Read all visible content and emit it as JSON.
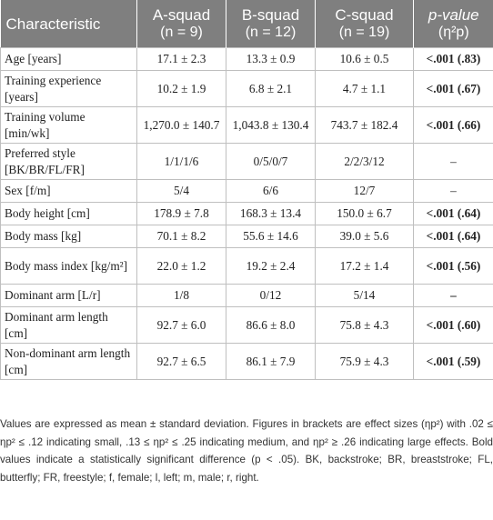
{
  "header": {
    "characteristic": "Characteristic",
    "a_squad": "A-squad",
    "a_n": "(n = 9)",
    "b_squad": "B-squad",
    "b_n": "(n = 12)",
    "c_squad": "C-squad",
    "c_n": "(n = 19)",
    "p_value": "p-value",
    "p_effect": "(η²p)"
  },
  "rows": [
    {
      "label": "Age [years]",
      "a": "17.1 ± 2.3",
      "b": "13.3 ± 0.9",
      "c": "10.6 ± 0.5",
      "p": "<.001 (.83)"
    },
    {
      "label": "Training experience [years]",
      "a": "10.2 ± 1.9",
      "b": "6.8 ± 2.1",
      "c": "4.7 ± 1.1",
      "p": "<.001 (.67)"
    },
    {
      "label": "Training volume [min/wk]",
      "a": "1,270.0 ± 140.7",
      "b": "1,043.8 ± 130.4",
      "c": "743.7 ± 182.4",
      "p": "<.001 (.66)"
    },
    {
      "label": "Preferred style [BK/BR/FL/FR]",
      "a": "1/1/1/6",
      "b": "0/5/0/7",
      "c": "2/2/3/12",
      "p": "–"
    },
    {
      "label": "Sex [f/m]",
      "a": "5/4",
      "b": "6/6",
      "c": "12/7",
      "p": "–"
    },
    {
      "label": "Body height [cm]",
      "a": "178.9 ± 7.8",
      "b": "168.3 ± 13.4",
      "c": "150.0 ± 6.7",
      "p": "<.001 (.64)"
    },
    {
      "label": "Body mass [kg]",
      "a": "70.1 ± 8.2",
      "b": "55.6 ± 14.6",
      "c": "39.0 ± 5.6",
      "p": "<.001 (.64)"
    },
    {
      "label": "Body mass index [kg/m²]",
      "a": "22.0 ± 1.2",
      "b": "19.2 ± 2.4",
      "c": "17.2 ± 1.4",
      "p": "<.001 (.56)"
    },
    {
      "label": "Dominant arm [L/r]",
      "a": "1/8",
      "b": "0/12",
      "c": "5/14",
      "p": "–"
    },
    {
      "label": "Dominant arm length [cm]",
      "a": "92.7 ± 6.0",
      "b": "86.6 ± 8.0",
      "c": "75.8 ± 4.3",
      "p": "<.001 (.60)"
    },
    {
      "label": "Non-dominant arm length [cm]",
      "a": "92.7 ± 6.5",
      "b": "86.1 ± 7.9",
      "c": "75.9 ± 4.3",
      "p": "<.001 (.59)"
    }
  ],
  "footnote": "Values are expressed as mean ± standard deviation. Figures in brackets are effect sizes (ηp²) with .02 ≤ ηp² ≤ .12 indicating small, .13 ≤ ηp² ≤ .25 indicating medium, and ηp² ≥ .26 indicating large effects. Bold values indicate a statistically significant difference (p < .05). BK, backstroke; BR, breaststroke; FL, butterfly; FR, freestyle; f, female; l, left; m, male; r, right."
}
